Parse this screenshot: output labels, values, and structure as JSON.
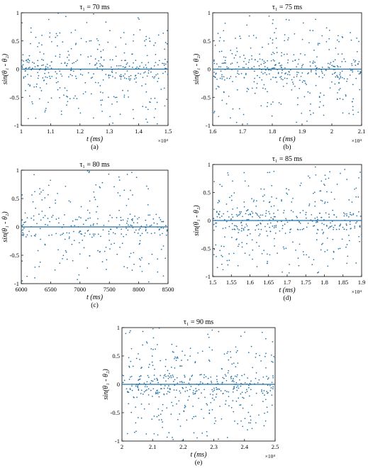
{
  "colors": {
    "data": "#1f6fa3",
    "axis": "#000000",
    "background": "#ffffff"
  },
  "chart_data": [
    {
      "type": "scatter",
      "panel": "(a)",
      "title": "τ₁ = 70 ms",
      "xlabel": "t (ms)",
      "ylabel": "sin(θ₁ - θ₂)",
      "xlim": [
        1,
        1.5
      ],
      "ylim": [
        -1,
        1
      ],
      "xticks": [
        "1",
        "1.1",
        "1.2",
        "1.3",
        "1.4",
        "1.5"
      ],
      "yticks": [
        "-1",
        "-0.5",
        "0",
        "0.5",
        "1"
      ],
      "x_multiplier": "×10⁴",
      "series": [
        {
          "pattern": "phase-slip scatter around 0 with sparse points spanning [-1, 1]",
          "count": 380
        }
      ]
    },
    {
      "type": "scatter",
      "panel": "(b)",
      "title": "τ₁ = 75 ms",
      "xlabel": "t (ms)",
      "ylabel": "sin(θ₁ - θ₂)",
      "xlim": [
        1.6,
        2.1
      ],
      "ylim": [
        -1,
        1
      ],
      "xticks": [
        "1.6",
        "1.7",
        "1.8",
        "1.9",
        "2",
        "2.1"
      ],
      "yticks": [
        "-1",
        "-0.5",
        "0",
        "0.5",
        "1"
      ],
      "x_multiplier": "×10⁴",
      "series": [
        {
          "pattern": "phase-slip scatter around 0 with sparse points spanning [-1, 1]",
          "count": 420
        }
      ]
    },
    {
      "type": "scatter",
      "panel": "(c)",
      "title": "τ₁ = 80 ms",
      "xlabel": "t (ms)",
      "ylabel": "sin(θ₁ - θ₂)",
      "xlim": [
        6000,
        8500
      ],
      "ylim": [
        -1,
        1
      ],
      "xticks": [
        "6000",
        "6500",
        "7000",
        "7500",
        "8000",
        "8500"
      ],
      "yticks": [
        "-1",
        "-0.5",
        "0",
        "0.5",
        "1"
      ],
      "x_multiplier": "",
      "series": [
        {
          "pattern": "phase-slip scatter around 0 with sparse points spanning [-1, 1]",
          "count": 300
        }
      ]
    },
    {
      "type": "scatter",
      "panel": "(d)",
      "title": "τ₁ = 85 ms",
      "xlabel": "t (ms)",
      "ylabel": "sin(θ₁ - θ₂)",
      "xlim": [
        1.5,
        1.9
      ],
      "ylim": [
        -1,
        1
      ],
      "xticks": [
        "1.5",
        "1.55",
        "1.6",
        "1.65",
        "1.7",
        "1.75",
        "1.8",
        "1.85",
        "1.9"
      ],
      "yticks": [
        "-1",
        "-0.5",
        "0",
        "0.5",
        "1"
      ],
      "x_multiplier": "×10⁴",
      "series": [
        {
          "pattern": "phase-slip scatter around 0 with sparse points spanning [-1, 1]",
          "count": 420
        }
      ]
    },
    {
      "type": "scatter",
      "panel": "(e)",
      "title": "τ₁ = 90 ms",
      "xlabel": "t (ms)",
      "ylabel": "sin(θ₁ - θ₂)",
      "xlim": [
        2,
        2.5
      ],
      "ylim": [
        -1,
        1
      ],
      "xticks": [
        "2",
        "2.1",
        "2.2",
        "2.3",
        "2.4",
        "2.5"
      ],
      "yticks": [
        "-1",
        "-0.5",
        "0",
        "0.5",
        "1"
      ],
      "x_multiplier": "×10⁴",
      "series": [
        {
          "pattern": "phase-slip scatter around 0 with sparse points spanning [-1, 1]",
          "count": 480
        }
      ]
    }
  ]
}
